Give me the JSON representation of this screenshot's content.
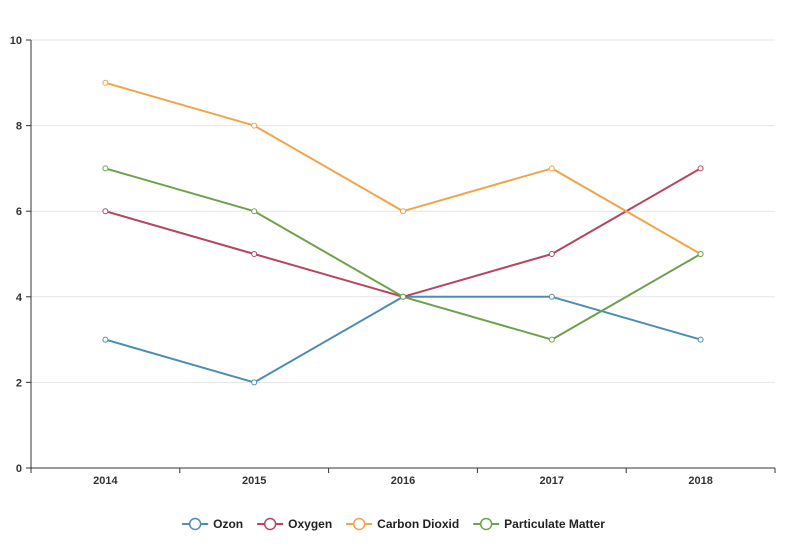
{
  "chart_data": {
    "type": "line",
    "categories": [
      "2014",
      "2015",
      "2016",
      "2017",
      "2018"
    ],
    "series": [
      {
        "name": "Ozon",
        "color": "#4a8eb0",
        "values": [
          3,
          2,
          4,
          4,
          3
        ]
      },
      {
        "name": "Oxygen",
        "color": "#b5465f",
        "values": [
          6,
          5,
          4,
          5,
          7
        ]
      },
      {
        "name": "Carbon Dioxid",
        "color": "#f0a44b",
        "values": [
          9,
          8,
          6,
          7,
          5
        ]
      },
      {
        "name": "Particulate Matter",
        "color": "#6fa14d",
        "values": [
          7,
          6,
          4,
          3,
          5
        ]
      }
    ],
    "yticks": [
      "0",
      "2",
      "4",
      "6",
      "8",
      "10"
    ],
    "ylim": [
      0,
      10
    ],
    "grid": true,
    "legend": "bottom-center",
    "axis_color": "#333333",
    "grid_color": "#e5e5e5"
  }
}
